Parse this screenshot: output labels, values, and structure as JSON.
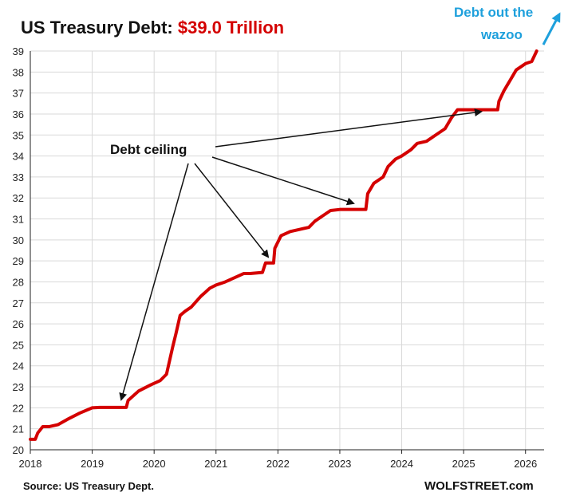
{
  "chart_data": {
    "type": "line",
    "title_prefix": "US Treasury Debt: ",
    "title_value": "$39.0 Trillion",
    "xlabel": "",
    "ylabel": "",
    "xlim": [
      2018,
      2026.3
    ],
    "ylim": [
      20,
      39
    ],
    "x_ticks": [
      "2018",
      "2019",
      "2020",
      "2021",
      "2022",
      "2023",
      "2024",
      "2025",
      "2026"
    ],
    "y_ticks": [
      "20",
      "21",
      "22",
      "23",
      "24",
      "25",
      "26",
      "27",
      "28",
      "29",
      "30",
      "31",
      "32",
      "33",
      "34",
      "35",
      "36",
      "37",
      "38",
      "39"
    ],
    "grid": true,
    "series": [
      {
        "color": "#d40000",
        "x": [
          2018.0,
          2018.08,
          2018.12,
          2018.2,
          2018.3,
          2018.45,
          2018.6,
          2018.8,
          2019.0,
          2019.12,
          2019.55,
          2019.58,
          2019.75,
          2019.95,
          2020.1,
          2020.2,
          2020.3,
          2020.35,
          2020.42,
          2020.5,
          2020.6,
          2020.75,
          2020.9,
          2021.0,
          2021.15,
          2021.3,
          2021.45,
          2021.55,
          2021.75,
          2021.8,
          2021.93,
          2021.95,
          2022.05,
          2022.2,
          2022.35,
          2022.5,
          2022.6,
          2022.75,
          2022.85,
          2023.0,
          2023.05,
          2023.42,
          2023.45,
          2023.55,
          2023.7,
          2023.78,
          2023.9,
          2024.0,
          2024.15,
          2024.25,
          2024.4,
          2024.55,
          2024.7,
          2024.8,
          2024.9,
          2024.98,
          2025.55,
          2025.57,
          2025.65,
          2025.75,
          2025.85,
          2026.0,
          2026.1,
          2026.18
        ],
        "values": [
          20.5,
          20.5,
          20.8,
          21.1,
          21.1,
          21.2,
          21.45,
          21.75,
          22.0,
          22.02,
          22.02,
          22.35,
          22.8,
          23.1,
          23.3,
          23.6,
          24.9,
          25.5,
          26.4,
          26.6,
          26.8,
          27.3,
          27.7,
          27.85,
          28.0,
          28.2,
          28.4,
          28.4,
          28.45,
          28.9,
          28.9,
          29.6,
          30.2,
          30.4,
          30.5,
          30.6,
          30.9,
          31.2,
          31.4,
          31.45,
          31.45,
          31.45,
          32.2,
          32.7,
          33.0,
          33.5,
          33.85,
          34.0,
          34.3,
          34.6,
          34.7,
          35.0,
          35.3,
          35.8,
          36.2,
          36.2,
          36.2,
          36.6,
          37.1,
          37.6,
          38.1,
          38.4,
          38.5,
          39.0
        ]
      }
    ],
    "annotations": {
      "debt_ceiling": "Debt ceiling",
      "wazoo_line1": "Debt out the",
      "wazoo_line2": "wazoo"
    },
    "source": "Source: US Treasury Dept.",
    "credit": "WOLFSTREET.com"
  },
  "colors": {
    "title": "#111111",
    "accent": "#d40000",
    "annotation_accent": "#1ea0dc",
    "grid": "#d9d9d9",
    "axis": "#222222"
  }
}
